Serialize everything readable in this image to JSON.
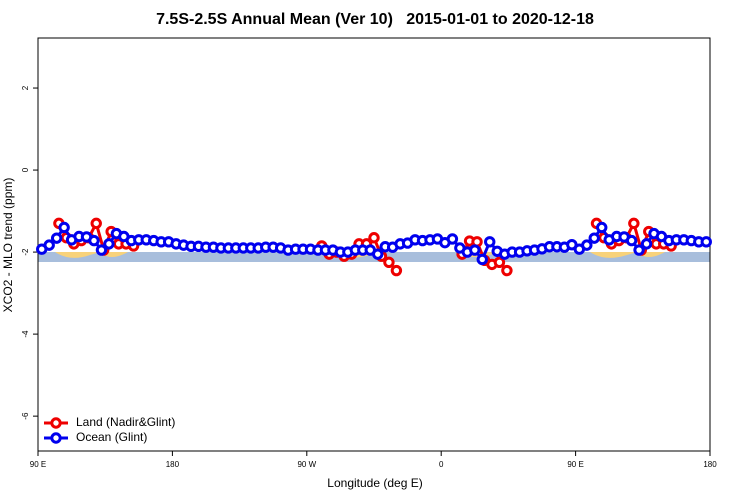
{
  "chart_data": {
    "type": "line",
    "title": "7.5S-2.5S Annual Mean (Ver 10)   2015-01-01 to 2020-12-18",
    "xlabel": "Longitude (deg E)",
    "ylabel": "XCO2 - MLO trend (ppm)",
    "xlim": [
      90,
      540
    ],
    "xticks": [
      {
        "value": 90,
        "label": "90 E"
      },
      180,
      {
        "value": 270,
        "label": "90 W"
      },
      {
        "value": 360,
        "label": "0"
      },
      {
        "value": 450,
        "label": "90 E"
      },
      {
        "value": 540,
        "label": "180"
      }
    ],
    "ylim": [
      -6.85,
      3.22
    ],
    "yticks": [
      2,
      0,
      -2,
      -4,
      -6
    ],
    "legend": "bottom-left",
    "series": [
      {
        "name": "Land (Nadir&Glint)",
        "color": "#ee0000",
        "x": [
          104,
          109,
          114,
          119,
          124,
          129,
          134,
          139,
          144,
          149,
          154,
          200,
          280,
          285,
          290,
          295,
          300,
          305,
          310,
          315,
          320,
          325,
          330,
          350,
          374,
          379,
          384,
          389,
          394,
          399,
          404,
          430,
          464,
          469,
          474,
          479,
          484,
          489,
          494,
          499,
          504,
          509,
          514
        ],
        "values": [
          -1.3,
          -1.65,
          -1.8,
          -1.72,
          -1.65,
          -1.3,
          -1.95,
          -1.5,
          -1.8,
          -1.8,
          -1.85,
          null,
          -1.85,
          -2.05,
          -2.0,
          -2.1,
          -2.05,
          -1.8,
          -1.8,
          -1.65,
          -2.1,
          -2.25,
          -2.45,
          null,
          -2.05,
          -1.73,
          -1.75,
          -2.2,
          -2.3,
          -2.25,
          -2.45,
          null,
          -1.3,
          -1.65,
          -1.8,
          -1.72,
          -1.65,
          -1.3,
          -1.95,
          -1.5,
          -1.8,
          -1.8,
          -1.85
        ]
      },
      {
        "name": "Ocean (Glint)",
        "color": "#0000ee",
        "x": [
          92.5,
          97.5,
          102.5,
          107.5,
          112.5,
          117.5,
          122.5,
          127.5,
          132.5,
          137.5,
          142.5,
          147.5,
          152.5,
          157.5,
          162.5,
          167.5,
          172.5,
          177.5,
          182.5,
          187.5,
          192.5,
          197.5,
          202.5,
          207.5,
          212.5,
          217.5,
          222.5,
          227.5,
          232.5,
          237.5,
          242.5,
          247.5,
          252.5,
          257.5,
          262.5,
          267.5,
          272.5,
          277.5,
          282.5,
          287.5,
          292.5,
          297.5,
          302.5,
          307.5,
          312.5,
          317.5,
          322.5,
          327.5,
          332.5,
          337.5,
          342.5,
          347.5,
          352.5,
          357.5,
          362.5,
          367.5,
          372.5,
          377.5,
          382.5,
          387.5,
          392.5,
          397.5,
          402.5,
          407.5,
          412.5,
          417.5,
          422.5,
          427.5,
          432.5,
          437.5,
          442.5,
          447.5,
          452.5,
          457.5,
          462.5,
          467.5,
          472.5,
          477.5,
          482.5,
          487.5,
          492.5,
          497.5,
          502.5,
          507.5,
          512.5,
          517.5,
          522.5,
          527.5,
          532.5,
          537.5
        ],
        "values": [
          -1.93,
          -1.83,
          -1.66,
          -1.4,
          -1.7,
          -1.62,
          -1.63,
          -1.72,
          -1.95,
          -1.8,
          -1.55,
          -1.62,
          -1.72,
          -1.7,
          -1.7,
          -1.72,
          -1.75,
          -1.75,
          -1.8,
          -1.83,
          -1.86,
          -1.86,
          -1.88,
          -1.88,
          -1.9,
          -1.9,
          -1.9,
          -1.9,
          -1.9,
          -1.9,
          -1.88,
          -1.88,
          -1.9,
          -1.95,
          -1.93,
          -1.93,
          -1.93,
          -1.95,
          -1.95,
          -1.95,
          -2.0,
          -2.0,
          -1.95,
          -1.95,
          -1.95,
          -2.05,
          -1.87,
          -1.88,
          -1.8,
          -1.78,
          -1.7,
          -1.72,
          -1.7,
          -1.68,
          -1.77,
          -1.68,
          -1.9,
          -2.0,
          -1.95,
          -2.18,
          -1.75,
          -1.98,
          -2.05,
          -2.0,
          -2.0,
          -1.97,
          -1.95,
          -1.92,
          -1.87,
          -1.87,
          -1.88,
          -1.82,
          -1.93,
          -1.83,
          -1.66,
          -1.4,
          -1.7,
          -1.62,
          -1.63,
          -1.72,
          -1.95,
          -1.8,
          -1.55,
          -1.62,
          -1.72,
          -1.7,
          -1.7,
          -1.72,
          -1.75,
          -1.75
        ]
      }
    ]
  }
}
